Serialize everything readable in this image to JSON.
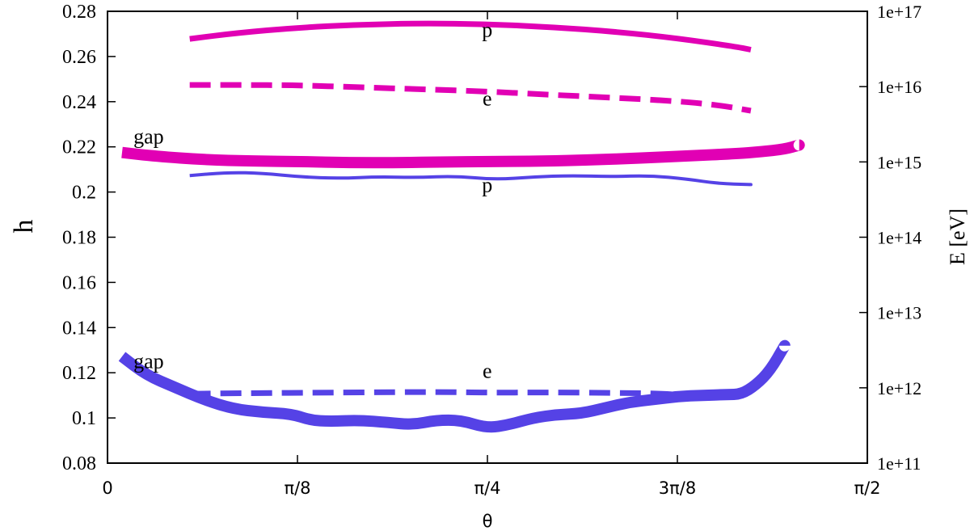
{
  "chart_data": {
    "type": "line",
    "xlabel": "θ",
    "ylabel": "h",
    "y2label": "E [eV]",
    "xlim": [
      0,
      1.5708
    ],
    "ylim": [
      0.08,
      0.28
    ],
    "y2lim_log10": [
      11,
      17
    ],
    "grid": false,
    "x_ticks": [
      {
        "value": 0,
        "label": "0"
      },
      {
        "value": 0.3927,
        "label": "π/8"
      },
      {
        "value": 0.7854,
        "label": "π/4"
      },
      {
        "value": 1.1781,
        "label": "3π/8"
      },
      {
        "value": 1.5708,
        "label": "π/2"
      }
    ],
    "y_ticks": [
      {
        "value": 0.08,
        "label": "0.08"
      },
      {
        "value": 0.1,
        "label": "0.1"
      },
      {
        "value": 0.12,
        "label": "0.12"
      },
      {
        "value": 0.14,
        "label": "0.14"
      },
      {
        "value": 0.16,
        "label": "0.16"
      },
      {
        "value": 0.18,
        "label": "0.18"
      },
      {
        "value": 0.2,
        "label": "0.2"
      },
      {
        "value": 0.22,
        "label": "0.22"
      },
      {
        "value": 0.24,
        "label": "0.24"
      },
      {
        "value": 0.26,
        "label": "0.26"
      },
      {
        "value": 0.28,
        "label": "0.28"
      }
    ],
    "y2_ticks": [
      {
        "exp": 11,
        "label": "1e+11"
      },
      {
        "exp": 12,
        "label": "1e+12"
      },
      {
        "exp": 13,
        "label": "1e+13"
      },
      {
        "exp": 14,
        "label": "1e+14"
      },
      {
        "exp": 15,
        "label": "1e+15"
      },
      {
        "exp": 16,
        "label": "1e+16"
      },
      {
        "exp": 17,
        "label": "1e+17"
      }
    ],
    "series": [
      {
        "color": "#e100b4",
        "dash": "solid",
        "width": "medium",
        "x": [
          0.17,
          0.27,
          0.39,
          0.52,
          0.65,
          0.785,
          0.92,
          1.05,
          1.18,
          1.3,
          1.33
        ],
        "y": [
          0.2678,
          0.2705,
          0.2727,
          0.2741,
          0.2747,
          0.2743,
          0.273,
          0.271,
          0.268,
          0.2643,
          0.263
        ]
      },
      {
        "color": "#e100b4",
        "dash": "dashed",
        "width": "medium",
        "x": [
          0.17,
          0.27,
          0.39,
          0.52,
          0.65,
          0.785,
          0.92,
          1.05,
          1.18,
          1.27,
          1.33
        ],
        "y": [
          0.2474,
          0.2474,
          0.2473,
          0.2464,
          0.2455,
          0.2445,
          0.243,
          0.2417,
          0.2402,
          0.2383,
          0.236
        ]
      },
      {
        "color": "#e100b4",
        "dash": "solid",
        "width": "thick",
        "x": [
          0.03,
          0.1,
          0.2,
          0.3,
          0.4,
          0.5,
          0.6,
          0.7,
          0.785,
          0.9,
          1.0,
          1.1,
          1.2,
          1.3,
          1.35,
          1.4,
          1.43
        ],
        "y": [
          0.2175,
          0.2158,
          0.2143,
          0.2137,
          0.2135,
          0.213,
          0.213,
          0.2133,
          0.2135,
          0.2137,
          0.2142,
          0.215,
          0.216,
          0.217,
          0.2178,
          0.219,
          0.2208
        ]
      },
      {
        "color": "#5542e6",
        "dash": "solid",
        "width": "thin",
        "x": [
          0.17,
          0.25,
          0.32,
          0.4,
          0.48,
          0.56,
          0.64,
          0.72,
          0.8,
          0.88,
          0.96,
          1.04,
          1.12,
          1.2,
          1.26,
          1.33
        ],
        "y": [
          0.2073,
          0.2087,
          0.2083,
          0.2067,
          0.206,
          0.2068,
          0.2064,
          0.2071,
          0.2055,
          0.2067,
          0.2073,
          0.2068,
          0.2073,
          0.2057,
          0.2038,
          0.2033
        ]
      },
      {
        "color": "#5542e6",
        "dash": "dashed",
        "width": "medium",
        "x": [
          0.17,
          0.3,
          0.45,
          0.6,
          0.7,
          0.785,
          0.9,
          1.05,
          1.15,
          1.2
        ],
        "y": [
          0.1107,
          0.111,
          0.1112,
          0.1114,
          0.1115,
          0.1112,
          0.1113,
          0.1111,
          0.1108,
          0.1098
        ]
      },
      {
        "color": "#5542e6",
        "dash": "solid",
        "width": "thick",
        "x": [
          0.03,
          0.08,
          0.14,
          0.2,
          0.26,
          0.32,
          0.38,
          0.42,
          0.46,
          0.52,
          0.58,
          0.63,
          0.68,
          0.73,
          0.785,
          0.83,
          0.88,
          0.93,
          0.98,
          1.03,
          1.08,
          1.13,
          1.18,
          1.23,
          1.28,
          1.31,
          1.34,
          1.37,
          1.4
        ],
        "y": [
          0.1272,
          0.119,
          0.1135,
          0.108,
          0.104,
          0.1025,
          0.1018,
          0.099,
          0.0985,
          0.099,
          0.098,
          0.097,
          0.099,
          0.099,
          0.0955,
          0.097,
          0.1,
          0.1015,
          0.102,
          0.1045,
          0.107,
          0.1082,
          0.1095,
          0.11,
          0.1103,
          0.1105,
          0.1145,
          0.121,
          0.132
        ]
      }
    ],
    "annotations": [
      {
        "text": "p",
        "x": 0.785,
        "y": 0.2688
      },
      {
        "text": "e",
        "x": 0.785,
        "y": 0.2383
      },
      {
        "text": "gap",
        "x": 0.085,
        "y": 0.2215
      },
      {
        "text": "p",
        "x": 0.785,
        "y": 0.2
      },
      {
        "text": "e",
        "x": 0.785,
        "y": 0.1178
      },
      {
        "text": "gap",
        "x": 0.085,
        "y": 0.122
      }
    ]
  }
}
